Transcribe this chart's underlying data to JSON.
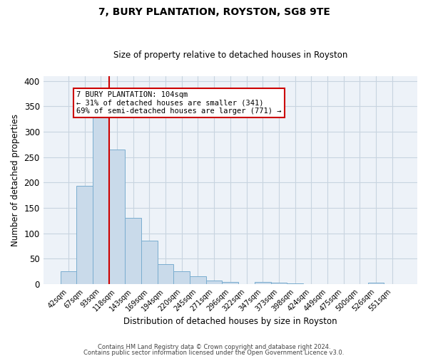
{
  "title": "7, BURY PLANTATION, ROYSTON, SG8 9TE",
  "subtitle": "Size of property relative to detached houses in Royston",
  "xlabel": "Distribution of detached houses by size in Royston",
  "ylabel": "Number of detached properties",
  "bar_labels": [
    "42sqm",
    "67sqm",
    "93sqm",
    "118sqm",
    "143sqm",
    "169sqm",
    "194sqm",
    "220sqm",
    "245sqm",
    "271sqm",
    "296sqm",
    "322sqm",
    "347sqm",
    "373sqm",
    "398sqm",
    "424sqm",
    "449sqm",
    "475sqm",
    "500sqm",
    "526sqm",
    "551sqm"
  ],
  "bar_values": [
    25,
    193,
    330,
    265,
    131,
    86,
    39,
    25,
    16,
    7,
    5,
    0,
    4,
    3,
    2,
    0,
    0,
    0,
    0,
    3,
    0
  ],
  "bar_color": "#c9daea",
  "bar_edge_color": "#7aadcf",
  "vline_color": "#cc0000",
  "vline_x_idx": 2.5,
  "annotation_line1": "7 BURY PLANTATION: 104sqm",
  "annotation_line2": "← 31% of detached houses are smaller (341)",
  "annotation_line3": "69% of semi-detached houses are larger (771) →",
  "annotation_box_color": "#ffffff",
  "annotation_box_edge": "#cc0000",
  "ylim": [
    0,
    410
  ],
  "yticks": [
    0,
    50,
    100,
    150,
    200,
    250,
    300,
    350,
    400
  ],
  "grid_color": "#c8d4e0",
  "footer_line1": "Contains HM Land Registry data © Crown copyright and database right 2024.",
  "footer_line2": "Contains public sector information licensed under the Open Government Licence v3.0.",
  "bg_color": "#edf2f8",
  "fig_bg": "#ffffff"
}
